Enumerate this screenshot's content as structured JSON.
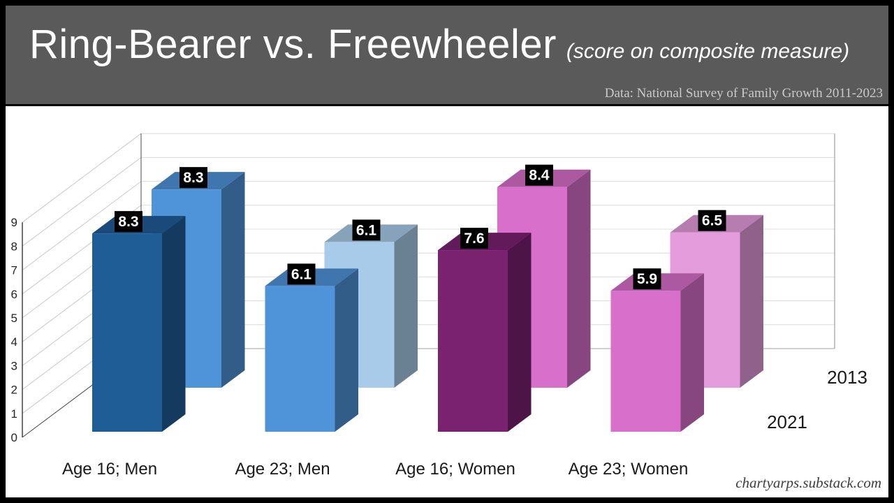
{
  "header": {
    "title": "Ring-Bearer vs. Freewheeler",
    "subtitle": "(score on composite measure)",
    "source": "Data: National Survey of Family Growth 2011-2023"
  },
  "footer": {
    "watermark": "chartyarps.substack.com"
  },
  "chart_data": {
    "type": "bar",
    "projection": "3d",
    "title": "Ring-Bearer vs. Freewheeler",
    "subtitle": "(score on composite measure)",
    "source": "Data: National Survey of Family Growth 2011-2023",
    "categories": [
      "Age 16; Men",
      "Age 23; Men",
      "Age 16; Women",
      "Age 23; Women"
    ],
    "series": [
      {
        "name": "2013",
        "row": "back",
        "values": [
          8.3,
          6.1,
          8.4,
          6.5
        ],
        "colors": [
          "#4F93D8",
          "#A9CBEA",
          "#D76FCB",
          "#E59CDD"
        ]
      },
      {
        "name": "2021",
        "row": "front",
        "values": [
          8.3,
          6.1,
          7.6,
          5.9
        ],
        "colors": [
          "#1F5D97",
          "#4F93D8",
          "#7A2170",
          "#D76FCB"
        ]
      }
    ],
    "yticks": [
      0,
      1,
      2,
      3,
      4,
      5,
      6,
      7,
      8,
      9
    ],
    "ylim": [
      0,
      9
    ],
    "grid": true,
    "legend_position": "right-depth-axis",
    "value_label_style": {
      "bg": "#000000",
      "fg": "#FFFFFF"
    },
    "colors_note": {
      "grid_line": "#dcdcdc",
      "wall_diag_line": "#c8c8c8",
      "axis_dark": "#404040",
      "axis_gray": "#a0a0a0",
      "text": "#1a1a1a"
    }
  }
}
